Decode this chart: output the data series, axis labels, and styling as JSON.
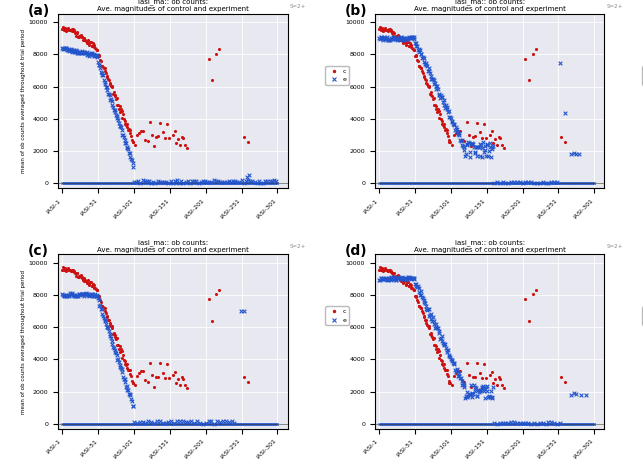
{
  "title": "iasi_ma:: ob counts:\nAve. magnitudes of control and experiment",
  "ylabel": "mean of ob counts averaged throughout trial period",
  "xlabel_ticks": [
    "IASI-1",
    "IASI-51",
    "IASI-101",
    "IASI-151",
    "IASI-201",
    "IASI-251",
    "IASI-301"
  ],
  "xtick_positions": [
    1,
    51,
    101,
    151,
    201,
    251,
    301
  ],
  "yticks": [
    0,
    2000,
    4000,
    6000,
    8000,
    10000
  ],
  "panel_labels": [
    "(a)",
    "(b)",
    "(c)",
    "(d)"
  ],
  "corner_text": "S=2+",
  "red_color": "#cc1111",
  "blue_color": "#2255cc",
  "background_color": "#e8e8f0",
  "grid_color": "#ffffff"
}
